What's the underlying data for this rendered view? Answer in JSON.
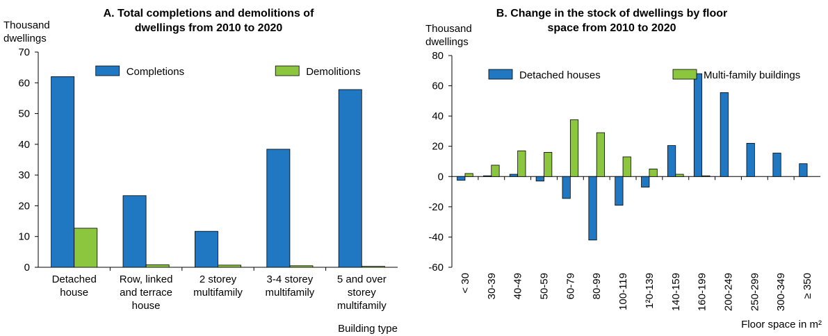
{
  "chart_data": [
    {
      "type": "bar",
      "title": "A. Total completions and demolitions of\ndwellings from 2010 to 2020",
      "y_label": "Thousand\ndwellings",
      "x_label": "Building type",
      "categories": [
        "Detached\nhouse",
        "Row, linked\nand terrace\nhouse",
        "2 storey\nmultifamily",
        "3-4 storey\nmultifamily",
        "5 and over\nstorey\nmultifamily"
      ],
      "series": [
        {
          "name": "Completions",
          "color": "#1f78c1",
          "values": [
            62,
            23.3,
            11.7,
            38.4,
            57.8
          ]
        },
        {
          "name": "Demolitions",
          "color": "#8cc63f",
          "values": [
            12.7,
            0.8,
            0.7,
            0.5,
            0.3
          ]
        }
      ],
      "ylim": [
        0,
        70
      ],
      "yticks": [
        0,
        10,
        20,
        30,
        40,
        50,
        60,
        70
      ],
      "legend": "top"
    },
    {
      "type": "bar",
      "title": "B. Change in the stock of dwellings by floor\nspace from 2010 to 2020",
      "y_label": "Thousand\ndwellings",
      "x_label": "Floor space in m²",
      "categories": [
        "< 30",
        "30-39",
        "40-49",
        "50-59",
        "60-79",
        "80-99",
        "100-119",
        "1²0-139",
        "140-159",
        "160-199",
        "200-249",
        "250-299",
        "300-349",
        "≥ 350"
      ],
      "series": [
        {
          "name": "Detached houses",
          "color": "#1f78c1",
          "values": [
            -2.5,
            0.5,
            1.5,
            -3,
            -14.5,
            -42,
            -19,
            -7,
            20.5,
            68,
            55.5,
            22,
            15.5,
            8.5
          ]
        },
        {
          "name": "Multi-family buildings",
          "color": "#8cc63f",
          "values": [
            2,
            7.5,
            17,
            16,
            37.5,
            29,
            13,
            5,
            1.5,
            0.5,
            0,
            0,
            0,
            0
          ]
        }
      ],
      "ylim": [
        -60,
        80
      ],
      "yticks": [
        -60,
        -40,
        -20,
        0,
        20,
        40,
        60,
        80
      ],
      "legend": "top"
    }
  ]
}
